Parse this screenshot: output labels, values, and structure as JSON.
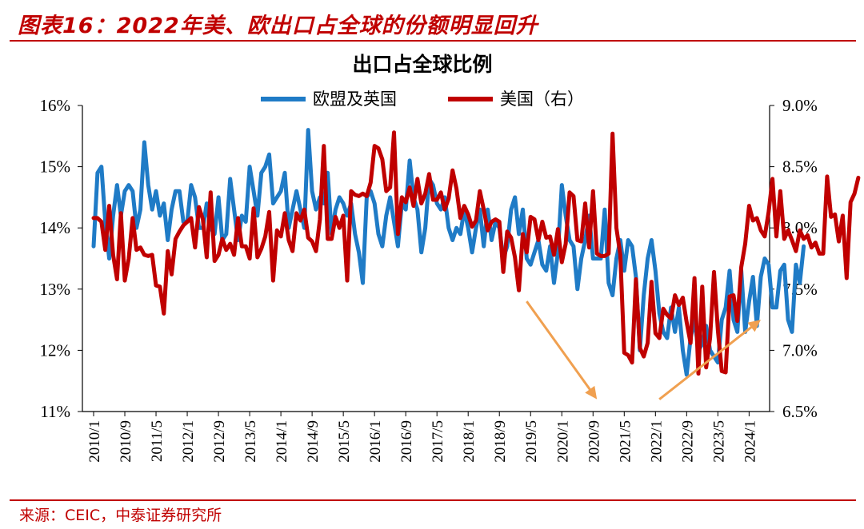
{
  "figure": {
    "title": "图表16：2022年美、欧出口占全球的份额明显回升",
    "source": "来源：CEIC，中泰证券研究所"
  },
  "chart_data": {
    "type": "line",
    "title": "出口占全球比例",
    "legend_position": "top-center",
    "grid": false,
    "x_tick_labels": [
      "2010/1",
      "2010/9",
      "2011/5",
      "2012/1",
      "2012/9",
      "2013/5",
      "2014/1",
      "2014/9",
      "2015/5",
      "2016/1",
      "2016/9",
      "2017/5",
      "2018/1",
      "2018/9",
      "2019/5",
      "2020/1",
      "2020/9",
      "2021/5",
      "2022/1",
      "2022/9",
      "2023/5",
      "2024/1"
    ],
    "x_start": "2010/1",
    "x_end": "2024/4",
    "y_left": {
      "min": 11,
      "max": 16,
      "step": 1,
      "tick_labels": [
        "11%",
        "12%",
        "13%",
        "14%",
        "15%",
        "16%"
      ]
    },
    "y_right": {
      "min": 6.5,
      "max": 9.0,
      "step": 0.5,
      "tick_labels": [
        "6.5%",
        "7.0%",
        "7.5%",
        "8.0%",
        "8.5%",
        "9.0%"
      ]
    },
    "series": [
      {
        "name": "欧盟及英国",
        "axis": "left",
        "color": "#1f7bc6",
        "unit": "%",
        "values": [
          13.7,
          14.9,
          15.0,
          14.1,
          13.5,
          14.2,
          14.7,
          14.2,
          14.6,
          14.7,
          14.6,
          14.0,
          14.3,
          15.4,
          14.7,
          14.3,
          14.6,
          14.2,
          14.4,
          13.8,
          14.3,
          14.6,
          14.6,
          14.1,
          14.1,
          14.7,
          14.5,
          14.0,
          14.0,
          14.4,
          14.0,
          13.9,
          14.5,
          13.8,
          13.9,
          14.8,
          14.3,
          13.8,
          14.2,
          14.1,
          15.0,
          14.6,
          14.2,
          14.9,
          15.0,
          15.2,
          14.4,
          14.5,
          14.6,
          14.9,
          14.0,
          14.3,
          14.6,
          14.3,
          14.0,
          15.6,
          14.6,
          14.3,
          14.5,
          14.4,
          14.9,
          13.9,
          14.3,
          14.5,
          14.4,
          14.2,
          14.4,
          13.9,
          13.6,
          13.1,
          14.5,
          14.6,
          14.4,
          13.9,
          13.7,
          14.2,
          14.5,
          14.1,
          13.7,
          14.4,
          14.3,
          15.1,
          14.5,
          14.3,
          13.6,
          14.0,
          14.8,
          14.7,
          14.4,
          14.3,
          14.5,
          14.0,
          13.8,
          14.0,
          13.9,
          14.3,
          14.0,
          13.6,
          14.0,
          14.3,
          13.7,
          14.3,
          13.8,
          14.1,
          14.0,
          13.5,
          13.7,
          14.3,
          14.5,
          13.9,
          14.3,
          13.5,
          13.4,
          13.6,
          13.8,
          13.4,
          13.3,
          13.7,
          13.1,
          13.6,
          14.7,
          14.2,
          13.8,
          13.7,
          13.0,
          13.5,
          13.8,
          14.2,
          13.5,
          13.5,
          13.5,
          14.3,
          13.1,
          12.9,
          13.5,
          13.8,
          13.3,
          13.8,
          13.7,
          13.2,
          12.0,
          12.9,
          13.5,
          13.8,
          13.3,
          12.6,
          12.3,
          12.2,
          12.7,
          12.3,
          12.7,
          12.0,
          11.6,
          12.2,
          12.5,
          12.0,
          12.1,
          12.4,
          12.0,
          11.9,
          11.8,
          12.5,
          12.7,
          13.3,
          12.5,
          12.3,
          13.3,
          12.3,
          12.8,
          13.2,
          12.4,
          13.2,
          13.5,
          13.4,
          12.7,
          12.7,
          13.3,
          13.4,
          12.5,
          12.3,
          13.4,
          13.1,
          13.7
        ]
      },
      {
        "name": "美国（右）",
        "axis": "right",
        "color": "#c00000",
        "unit": "%",
        "values": [
          8.08,
          8.08,
          8.05,
          7.82,
          8.18,
          7.78,
          7.58,
          8.12,
          7.57,
          7.75,
          8.08,
          7.82,
          7.84,
          7.78,
          7.77,
          7.78,
          7.53,
          7.52,
          7.3,
          7.81,
          7.62,
          7.91,
          7.97,
          8.02,
          8.05,
          8.08,
          7.84,
          8.17,
          8.07,
          7.76,
          8.29,
          7.73,
          7.78,
          7.91,
          7.82,
          7.87,
          7.78,
          8.08,
          7.85,
          7.85,
          7.75,
          8.16,
          7.76,
          7.83,
          7.93,
          8.13,
          7.57,
          7.98,
          7.93,
          8.12,
          7.9,
          7.81,
          8.12,
          8.06,
          8.15,
          7.92,
          7.89,
          7.81,
          8.07,
          8.67,
          7.91,
          7.91,
          8.09,
          8.0,
          8.1,
          7.57,
          8.3,
          8.27,
          8.26,
          8.28,
          8.26,
          8.37,
          8.67,
          8.65,
          8.56,
          8.3,
          8.33,
          8.78,
          7.95,
          8.25,
          8.21,
          8.33,
          8.18,
          8.4,
          8.2,
          8.28,
          8.44,
          8.23,
          8.23,
          8.29,
          8.15,
          8.24,
          8.47,
          8.32,
          8.08,
          8.18,
          8.11,
          8.01,
          8.06,
          8.3,
          8.15,
          7.98,
          8.05,
          8.07,
          8.05,
          7.64,
          7.97,
          7.92,
          7.76,
          7.49,
          7.95,
          7.8,
          8.09,
          8.07,
          7.9,
          8.05,
          7.92,
          7.93,
          7.78,
          7.99,
          7.72,
          7.87,
          8.29,
          8.26,
          7.9,
          7.89,
          8.2,
          7.84,
          8.3,
          7.79,
          7.77,
          7.77,
          7.79,
          8.77,
          8.0,
          7.78,
          6.98,
          6.96,
          6.9,
          7.58,
          7.02,
          6.95,
          7.06,
          7.56,
          7.14,
          7.1,
          7.34,
          7.29,
          7.26,
          7.45,
          7.37,
          7.43,
          7.23,
          7.06,
          7.59,
          6.81,
          7.52,
          6.86,
          7.1,
          7.64,
          7.16,
          6.83,
          6.82,
          7.44,
          7.45,
          7.24,
          7.68,
          7.87,
          8.18,
          8.06,
          8.08,
          7.98,
          7.93,
          8.13,
          8.4,
          7.93,
          8.3,
          7.91,
          7.98,
          7.9,
          7.81,
          7.98,
          7.91,
          7.94,
          7.84,
          7.88,
          7.79,
          7.79,
          8.42,
          8.09,
          8.11,
          7.89,
          8.1,
          7.59,
          8.21,
          8.28,
          8.41
        ]
      }
    ],
    "annotations": [
      {
        "type": "arrow",
        "color": "#f0a050",
        "from": {
          "x": "2019/4",
          "y_right": 7.4
        },
        "to": {
          "x": "2020/10",
          "y_right": 6.6
        }
      },
      {
        "type": "arrow",
        "color": "#f0a050",
        "from": {
          "x": "2022/2",
          "y_right": 6.6
        },
        "to": {
          "x": "2024/4",
          "y_right": 7.25
        }
      }
    ]
  }
}
